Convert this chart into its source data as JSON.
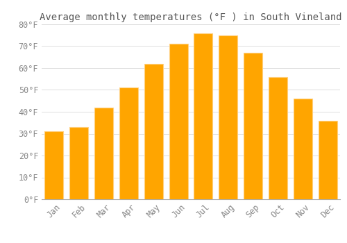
{
  "title": "Average monthly temperatures (°F ) in South Vineland",
  "months": [
    "Jan",
    "Feb",
    "Mar",
    "Apr",
    "May",
    "Jun",
    "Jul",
    "Aug",
    "Sep",
    "Oct",
    "Nov",
    "Dec"
  ],
  "values": [
    31,
    33,
    42,
    51,
    62,
    71,
    76,
    75,
    67,
    56,
    46,
    36
  ],
  "bar_color_face": "#FFA500",
  "bar_color_edge": "#FFD080",
  "bar_color_left": "#FFD070",
  "ylim": [
    0,
    80
  ],
  "yticks": [
    0,
    10,
    20,
    30,
    40,
    50,
    60,
    70,
    80
  ],
  "ytick_labels": [
    "0°F",
    "10°F",
    "20°F",
    "30°F",
    "40°F",
    "50°F",
    "60°F",
    "70°F",
    "80°F"
  ],
  "title_fontsize": 10,
  "tick_fontsize": 8.5,
  "background_color": "#FFFFFF",
  "grid_color": "#DDDDDD"
}
